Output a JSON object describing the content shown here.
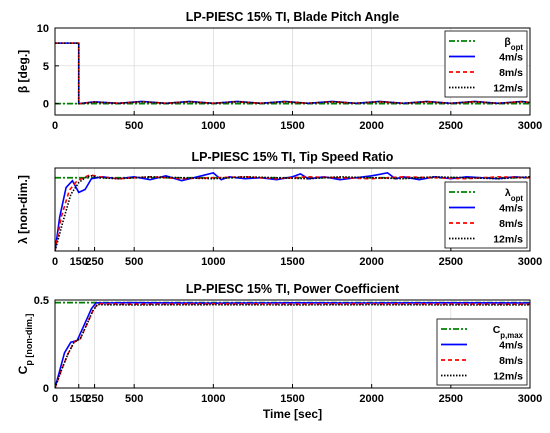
{
  "chart_data": [
    {
      "type": "line",
      "title": "LP-PIESC 15% TI, Blade Pitch Angle",
      "ylabel": "β [deg.]",
      "xlabel": "",
      "xlim": [
        0,
        3000
      ],
      "ylim": [
        -1.5,
        10
      ],
      "xticks": [
        0,
        500,
        1000,
        1500,
        2000,
        2500,
        3000
      ],
      "yticks": [
        0,
        5,
        10
      ],
      "grid": true,
      "legend_position": "top-right",
      "legend": [
        "β_opt",
        "4m/s",
        "8m/s",
        "12m/s"
      ],
      "series": [
        {
          "name": "β_opt",
          "color": "#008000",
          "dash": "6,2,2,2",
          "x": [
            0,
            3000
          ],
          "y": [
            0,
            0
          ]
        },
        {
          "name": "4m/s",
          "color": "#0000ff",
          "dash": "",
          "x": [
            0,
            150,
            150,
            250,
            400,
            550,
            700,
            850,
            1000,
            1150,
            1300,
            1450,
            1600,
            1750,
            1900,
            2050,
            2200,
            2350,
            2500,
            2650,
            2800,
            2950,
            3000
          ],
          "y": [
            8,
            8,
            0,
            0.25,
            0.05,
            0.3,
            0.05,
            0.3,
            0.05,
            0.3,
            0.05,
            0.3,
            0.05,
            0.3,
            0.05,
            0.3,
            0.05,
            0.3,
            0.05,
            0.3,
            0.05,
            0.3,
            0.15
          ]
        },
        {
          "name": "8m/s",
          "color": "#ff0000",
          "dash": "4,3",
          "x": [
            0,
            150,
            150,
            250,
            400,
            550,
            700,
            850,
            1000,
            1150,
            1300,
            1450,
            1600,
            1750,
            1900,
            2050,
            2200,
            2350,
            2500,
            2650,
            2800,
            2950,
            3000
          ],
          "y": [
            8,
            8,
            0,
            0.2,
            0.05,
            0.25,
            0.05,
            0.25,
            0.05,
            0.25,
            0.05,
            0.25,
            0.05,
            0.25,
            0.05,
            0.25,
            0.05,
            0.25,
            0.05,
            0.25,
            0.05,
            0.25,
            0.15
          ]
        },
        {
          "name": "12m/s",
          "color": "#000000",
          "dash": "1.5,1.5",
          "x": [
            0,
            150,
            150,
            250,
            400,
            550,
            700,
            850,
            1000,
            1150,
            1300,
            1450,
            1600,
            1750,
            1900,
            2050,
            2200,
            2350,
            2500,
            2650,
            2800,
            2950,
            3000
          ],
          "y": [
            8,
            8,
            0,
            0.2,
            0.05,
            0.25,
            0.05,
            0.25,
            0.05,
            0.25,
            0.05,
            0.25,
            0.05,
            0.25,
            0.05,
            0.25,
            0.05,
            0.25,
            0.05,
            0.25,
            0.05,
            0.25,
            0.15
          ]
        }
      ]
    },
    {
      "type": "line",
      "title": "LP-PIESC 15% TI, Tip Speed Ratio",
      "ylabel": "λ [non-dim.]",
      "xlabel": "",
      "xlim": [
        0,
        3000
      ],
      "ylim": [
        0,
        8.5
      ],
      "xticks": [
        0,
        150,
        250,
        500,
        1000,
        1500,
        2000,
        2500,
        3000
      ],
      "yticks": [],
      "grid": true,
      "legend_position": "bottom-right",
      "legend": [
        "λ_opt",
        "4m/s",
        "8m/s",
        "12m/s"
      ],
      "series": [
        {
          "name": "λ_opt",
          "color": "#008000",
          "dash": "6,2,2,2",
          "x": [
            0,
            3000
          ],
          "y": [
            7.5,
            7.5
          ]
        },
        {
          "name": "4m/s",
          "color": "#0000ff",
          "dash": "",
          "x": [
            0,
            30,
            70,
            110,
            150,
            190,
            230,
            300,
            400,
            500,
            600,
            700,
            800,
            900,
            1000,
            1050,
            1100,
            1200,
            1300,
            1400,
            1500,
            1550,
            1600,
            1700,
            1800,
            1900,
            2000,
            2100,
            2150,
            2200,
            2300,
            2400,
            2500,
            2600,
            2700,
            2800,
            2900,
            3000
          ],
          "y": [
            0,
            3.5,
            6.5,
            7.2,
            6.0,
            6.3,
            7.4,
            7.6,
            7.4,
            7.6,
            7.3,
            7.7,
            7.2,
            7.6,
            8.0,
            7.3,
            7.6,
            7.4,
            7.5,
            7.3,
            7.6,
            7.9,
            7.4,
            7.6,
            7.3,
            7.5,
            7.7,
            8.0,
            7.4,
            7.6,
            7.3,
            7.6,
            7.4,
            7.6,
            7.5,
            7.4,
            7.6,
            7.5
          ]
        },
        {
          "name": "8m/s",
          "color": "#ff0000",
          "dash": "4,3",
          "x": [
            0,
            40,
            90,
            140,
            180,
            220,
            280,
            400,
            600,
            800,
            1000,
            1200,
            1400,
            1600,
            1800,
            2000,
            2200,
            2400,
            2600,
            2800,
            3000
          ],
          "y": [
            0,
            3.5,
            6.2,
            7.2,
            7.5,
            7.8,
            7.6,
            7.4,
            7.6,
            7.4,
            7.5,
            7.6,
            7.4,
            7.6,
            7.5,
            7.4,
            7.6,
            7.5,
            7.4,
            7.6,
            7.5
          ]
        },
        {
          "name": "12m/s",
          "color": "#000000",
          "dash": "1.5,1.5",
          "x": [
            0,
            50,
            100,
            150,
            190,
            230,
            280,
            400,
            600,
            800,
            1000,
            1200,
            1400,
            1600,
            1800,
            2000,
            2200,
            2400,
            2600,
            2800,
            3000
          ],
          "y": [
            0,
            3.0,
            5.8,
            7.0,
            7.5,
            7.7,
            7.5,
            7.4,
            7.6,
            7.5,
            7.4,
            7.6,
            7.5,
            7.4,
            7.6,
            7.5,
            7.4,
            7.6,
            7.5,
            7.4,
            7.6
          ]
        }
      ]
    },
    {
      "type": "line",
      "title": "LP-PIESC 15% TI, Power Coefficient",
      "ylabel": "C_p [non-dim.]",
      "xlabel": "Time [sec]",
      "xlim": [
        0,
        3000
      ],
      "ylim": [
        0,
        0.5
      ],
      "xticks": [
        0,
        150,
        250,
        500,
        1000,
        1500,
        2000,
        2500,
        3000
      ],
      "yticks": [
        0,
        0.5
      ],
      "grid": true,
      "legend_position": "bottom-right",
      "legend": [
        "C_p,max",
        "4m/s",
        "8m/s",
        "12m/s"
      ],
      "series": [
        {
          "name": "C_p,max",
          "color": "#008000",
          "dash": "6,2,2,2",
          "x": [
            0,
            3000
          ],
          "y": [
            0.485,
            0.485
          ]
        },
        {
          "name": "4m/s",
          "color": "#0000ff",
          "dash": "",
          "x": [
            0,
            30,
            60,
            100,
            140,
            180,
            230,
            260,
            300,
            500,
            1000,
            1500,
            2000,
            2500,
            3000
          ],
          "y": [
            0,
            0.1,
            0.2,
            0.26,
            0.27,
            0.35,
            0.45,
            0.485,
            0.483,
            0.485,
            0.482,
            0.484,
            0.483,
            0.484,
            0.483
          ]
        },
        {
          "name": "8m/s",
          "color": "#ff0000",
          "dash": "4,3",
          "x": [
            0,
            40,
            80,
            120,
            160,
            200,
            240,
            270,
            300,
            500,
            1000,
            1500,
            2000,
            2500,
            3000
          ],
          "y": [
            0,
            0.1,
            0.19,
            0.26,
            0.28,
            0.36,
            0.44,
            0.48,
            0.478,
            0.476,
            0.478,
            0.477,
            0.478,
            0.477,
            0.476
          ]
        },
        {
          "name": "12m/s",
          "color": "#000000",
          "dash": "1.5,1.5",
          "x": [
            0,
            40,
            80,
            120,
            160,
            200,
            240,
            270,
            300,
            500,
            1000,
            1500,
            2000,
            2500,
            3000
          ],
          "y": [
            0,
            0.1,
            0.19,
            0.26,
            0.28,
            0.36,
            0.44,
            0.475,
            0.473,
            0.472,
            0.473,
            0.472,
            0.473,
            0.472,
            0.472
          ]
        }
      ]
    }
  ]
}
